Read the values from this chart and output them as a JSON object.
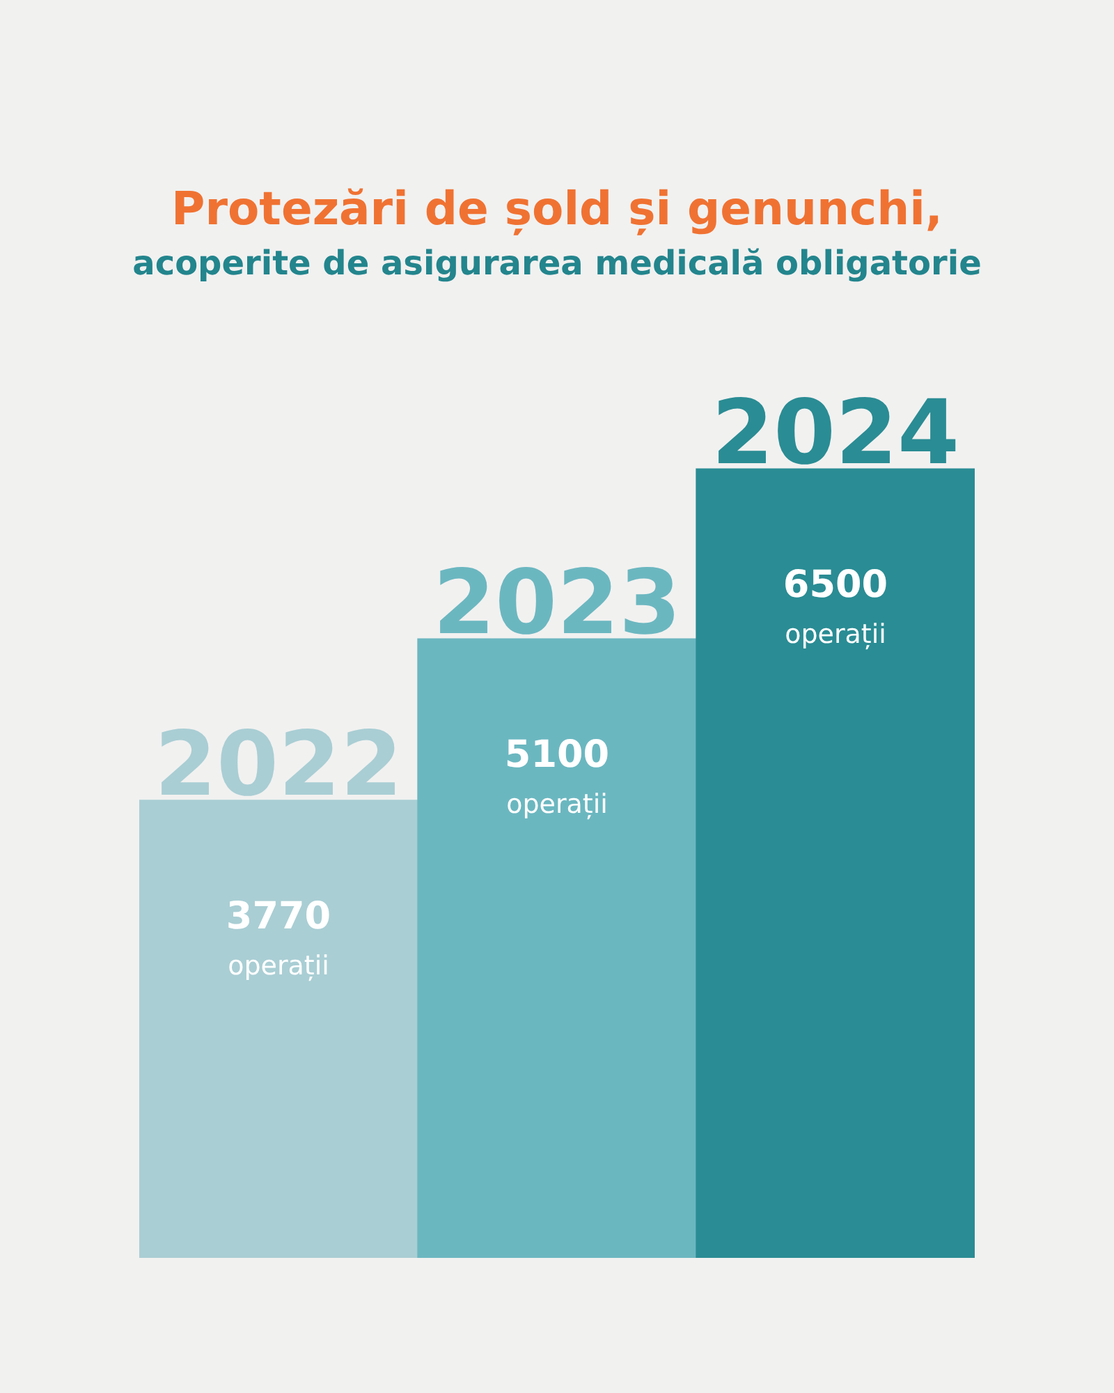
{
  "chart_data": {
    "type": "bar",
    "title": "Protezări de șold și genunchi,",
    "subtitle": "acoperite de asigurarea medicală obligatorie",
    "categories": [
      "2022",
      "2023",
      "2024"
    ],
    "values": [
      3770,
      5100,
      6500
    ],
    "colors": [
      "#a9ced4",
      "#6bb7c0",
      "#2a8c94"
    ],
    "value_labels": [
      "3770 operații",
      "5100 operații",
      "6500 operații"
    ],
    "tick_labels": false
  }
}
